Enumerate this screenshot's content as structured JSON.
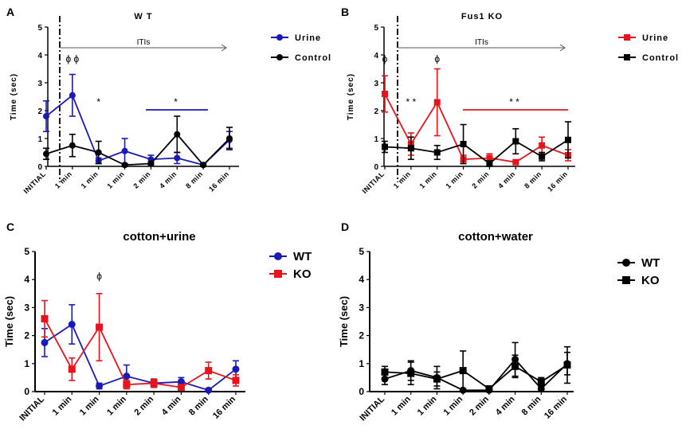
{
  "chart_data": [
    {
      "id": "A",
      "type": "line",
      "panel_letter": "A",
      "title": "W T",
      "ylabel": "Time (sec)",
      "ylim": [
        0,
        5
      ],
      "yticks": [
        "0",
        "1",
        "2",
        "3",
        "4",
        "5"
      ],
      "categories": [
        "INITIAL",
        "1 min",
        "1 min",
        "1 min",
        "2 min",
        "4 min",
        "8 min",
        "16 min"
      ],
      "iti_label": "ITIs",
      "series": [
        {
          "name": "Urine",
          "color": "#1a1ab8",
          "marker": "circle",
          "values": [
            1.8,
            2.55,
            0.2,
            0.55,
            0.25,
            0.3,
            0.05,
            0.95
          ],
          "errors": [
            0.55,
            0.75,
            0.1,
            0.45,
            0.15,
            0.2,
            0.05,
            0.3
          ]
        },
        {
          "name": "Control",
          "color": "#000000",
          "marker": "circle",
          "values": [
            0.45,
            0.75,
            0.5,
            0.05,
            0.1,
            1.15,
            0.05,
            1.0
          ],
          "errors": [
            0.2,
            0.4,
            0.4,
            0.05,
            0.05,
            0.65,
            0.05,
            0.4
          ]
        }
      ],
      "annotations": [
        {
          "text": "ϕ ϕ",
          "x": 1,
          "y": 3.75,
          "color": "#000000"
        },
        {
          "text": "*",
          "x": 2,
          "y": 2.2,
          "color": "#1a1ab8"
        },
        {
          "text": "*",
          "x": 4.95,
          "y": 2.2,
          "color": "#1a1ab8"
        }
      ]
    },
    {
      "id": "B",
      "type": "line",
      "panel_letter": "B",
      "title": "Fus1 KO",
      "ylabel": "Time (sec)",
      "ylim": [
        0,
        5
      ],
      "yticks": [
        "0",
        "1",
        "2",
        "3",
        "4",
        "5"
      ],
      "categories": [
        "INITIAL",
        "1 min",
        "1 min",
        "1 min",
        "2 min",
        "4 min",
        "8 min",
        "16 min"
      ],
      "iti_label": "ITIs",
      "series": [
        {
          "name": "Urine",
          "color": "#e8141c",
          "marker": "square",
          "values": [
            2.6,
            0.8,
            2.3,
            0.25,
            0.3,
            0.15,
            0.75,
            0.4
          ],
          "errors": [
            0.65,
            0.4,
            1.2,
            0.15,
            0.15,
            0.05,
            0.3,
            0.2
          ]
        },
        {
          "name": "Control",
          "color": "#000000",
          "marker": "square",
          "values": [
            0.7,
            0.65,
            0.5,
            0.8,
            0.1,
            0.9,
            0.35,
            0.95
          ],
          "errors": [
            0.2,
            0.4,
            0.25,
            0.7,
            0.1,
            0.45,
            0.15,
            0.65
          ]
        }
      ],
      "annotations": [
        {
          "text": "ϕ",
          "x": 0,
          "y": 3.75,
          "color": "#000000"
        },
        {
          "text": "ϕ",
          "x": 2,
          "y": 3.75,
          "color": "#000000"
        },
        {
          "text": "* *",
          "x": 1,
          "y": 2.2,
          "color": "#e8141c"
        },
        {
          "text": "* *",
          "x": 4.95,
          "y": 2.2,
          "color": "#e8141c"
        }
      ]
    },
    {
      "id": "C",
      "type": "line",
      "panel_letter": "C",
      "title": "cotton+urine",
      "ylabel": "Time (sec)",
      "ylim": [
        0,
        5
      ],
      "yticks": [
        "0",
        "1",
        "2",
        "3",
        "4",
        "5"
      ],
      "categories": [
        "INITIAL",
        "1 min",
        "1 min",
        "1 min",
        "2 min",
        "4 min",
        "8 min",
        "16 min"
      ],
      "series": [
        {
          "name": "WT",
          "color": "#1a1ab8",
          "marker": "circle",
          "values": [
            1.75,
            2.4,
            0.2,
            0.55,
            0.3,
            0.35,
            0.05,
            0.8
          ],
          "errors": [
            0.5,
            0.7,
            0.1,
            0.4,
            0.15,
            0.15,
            0.05,
            0.3
          ]
        },
        {
          "name": "KO",
          "color": "#e8141c",
          "marker": "square",
          "values": [
            2.6,
            0.8,
            2.3,
            0.25,
            0.3,
            0.15,
            0.75,
            0.4
          ],
          "errors": [
            0.65,
            0.4,
            1.2,
            0.15,
            0.15,
            0.05,
            0.3,
            0.2
          ]
        }
      ],
      "annotations": [
        {
          "text": "ϕ",
          "x": 2,
          "y": 4.0,
          "color": "#000000"
        }
      ]
    },
    {
      "id": "D",
      "type": "line",
      "panel_letter": "D",
      "title": "cotton+water",
      "ylabel": "Time (sec)",
      "ylim": [
        0,
        5
      ],
      "yticks": [
        "0",
        "1",
        "2",
        "3",
        "4",
        "5"
      ],
      "categories": [
        "INITIAL",
        "1 min",
        "1 min",
        "1 min",
        "2 min",
        "4 min",
        "8 min",
        "16 min"
      ],
      "series": [
        {
          "name": "WT",
          "color": "#000000",
          "marker": "circle",
          "values": [
            0.45,
            0.75,
            0.5,
            0.05,
            0.05,
            1.15,
            0.1,
            1.0
          ],
          "errors": [
            0.2,
            0.35,
            0.4,
            0.05,
            0.05,
            0.6,
            0.1,
            0.4
          ]
        },
        {
          "name": "KO",
          "color": "#000000",
          "marker": "square",
          "values": [
            0.7,
            0.65,
            0.45,
            0.75,
            0.1,
            0.9,
            0.35,
            0.95
          ],
          "errors": [
            0.2,
            0.4,
            0.25,
            0.7,
            0.05,
            0.4,
            0.15,
            0.65
          ]
        }
      ],
      "annotations": []
    }
  ]
}
